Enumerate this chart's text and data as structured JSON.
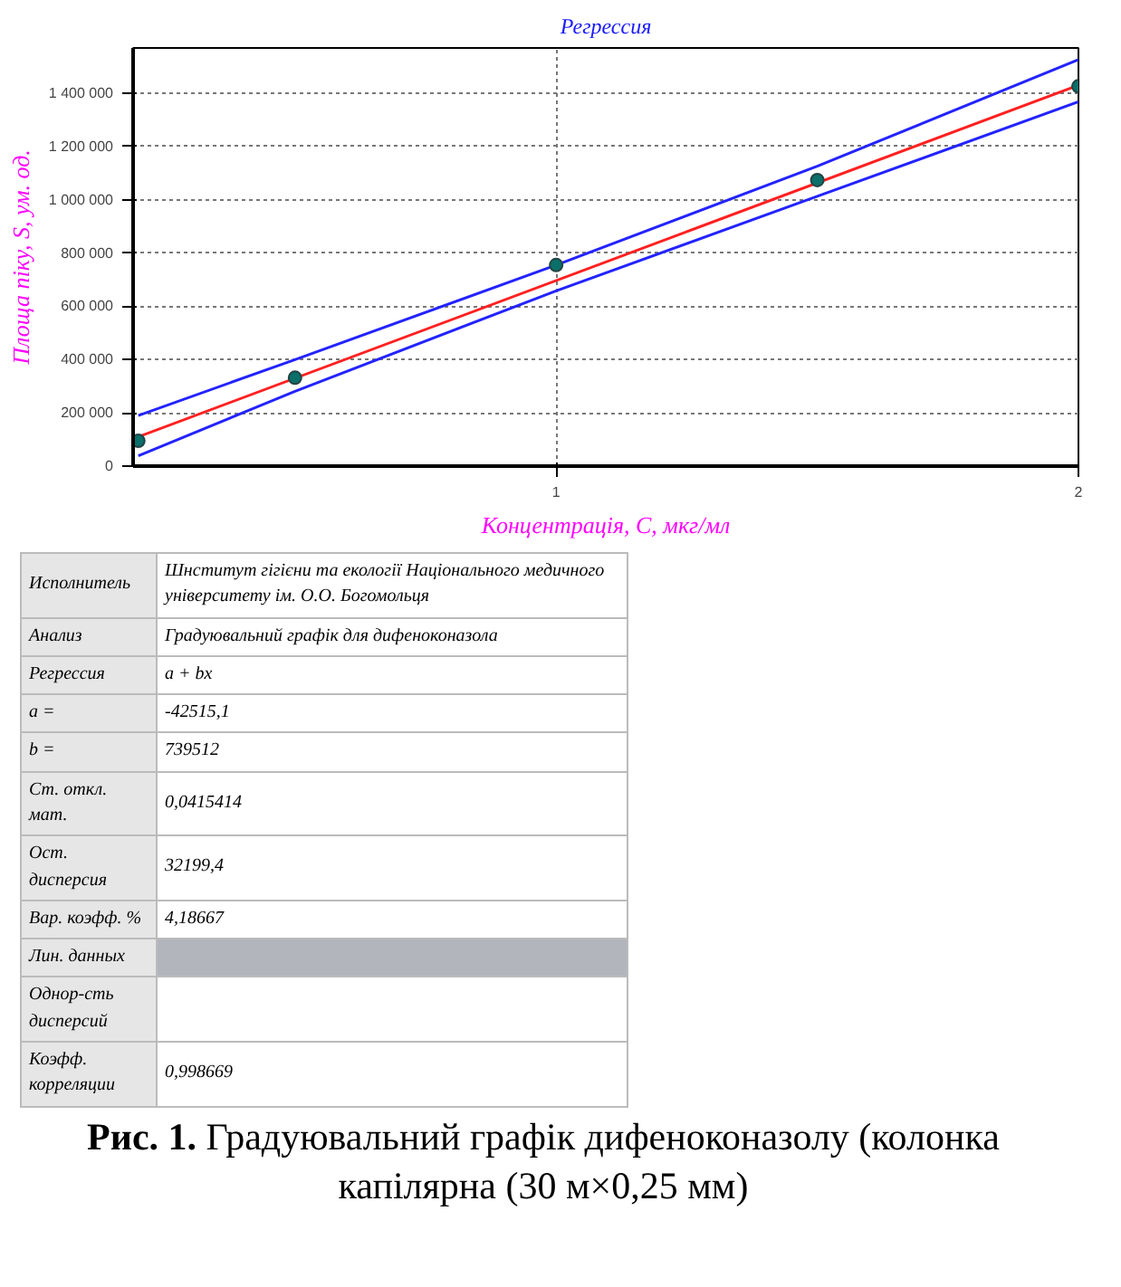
{
  "chart_data": {
    "type": "scatter",
    "title": "Регрессия",
    "xlabel": "Концентрація, С, мкг/мл",
    "ylabel": "Площа піку, S, ум. од.",
    "xlim": [
      0.19,
      2.0
    ],
    "xticks": [
      1,
      2
    ],
    "ylim": [
      0,
      1570000
    ],
    "yticks": [
      0,
      {
        "value": 200000,
        "label": "200 000"
      },
      {
        "value": 400000,
        "label": "400 000"
      },
      {
        "value": 600000,
        "label": "600 000"
      },
      {
        "value": 800000,
        "label": "800 000"
      },
      {
        "value": 1000000,
        "label": "1 000 000"
      },
      {
        "value": 1200000,
        "label": "1 200 000"
      },
      {
        "value": 1400000,
        "label": "1 400 000"
      }
    ],
    "grid": true,
    "marker": "circle",
    "series": [
      {
        "type": "line",
        "marker": "none",
        "color": "#2323ff",
        "x": [
          0.2,
          0.5,
          1.0,
          1.5,
          2.0
        ],
        "values": [
          190000,
          400000,
          755000,
          1126000,
          1526000
        ]
      },
      {
        "type": "line",
        "marker": "none",
        "color": "#2323ff",
        "x": [
          0.2,
          0.5,
          1.0,
          1.5,
          2.0
        ],
        "values": [
          39000,
          281000,
          658000,
          1013000,
          1368000
        ]
      },
      {
        "type": "line",
        "marker": "none",
        "color": "#ff2020",
        "x": [
          0.2,
          2.0
        ],
        "values": [
          110000,
          1430000
        ]
      },
      {
        "color": "#0b6f6a",
        "x": [
          0.2,
          0.5,
          1.0,
          1.5,
          2.0
        ],
        "values": [
          95000,
          332000,
          755000,
          1074000,
          1426000
        ]
      }
    ],
    "annotations": [
      "Исполнитель",
      "Шнститут гігієни та екології Національного медичного університету ім. О.О. Богомольця",
      "Анализ",
      "Градуювальний графік для дифеноконазола",
      "Регрессия",
      "a + bx",
      "a =",
      "-42515,1",
      "b =",
      "739512",
      "Ст. откл. мат.",
      "0,0415414",
      "Ост. дисперсия",
      "32199,4",
      "Вар. коэфф. %",
      "4,18667",
      "Лин. данных",
      "Однор-сть дисперсий",
      "Коэфф. корреляции",
      "0,998669",
      "Рис. 1.",
      "Градуювальний графік дифеноконазолу (колонка капілярна (30 м×0,25 мм)"
    ]
  }
}
